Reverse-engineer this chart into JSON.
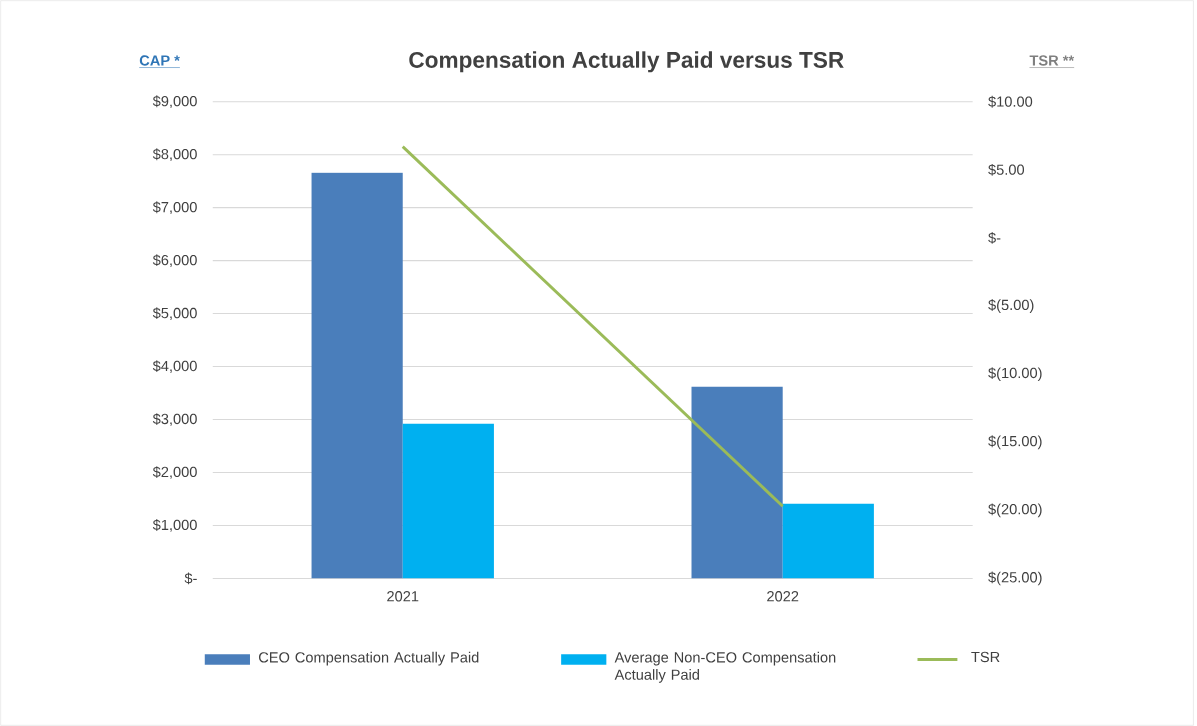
{
  "chart_data": {
    "type": "bar",
    "title": "Compensation Actually Paid versus TSR",
    "ylabel": "CAP *",
    "y2label": "TSR **",
    "categories": [
      "2021",
      "2022"
    ],
    "series": [
      {
        "name": "CEO Compensation Actually Paid",
        "color": "#4a7ebb",
        "values": [
          7660,
          3620
        ]
      },
      {
        "name": "Average Non-CEO Compensation Actually Paid",
        "color": "#00b0f0",
        "values": [
          2920,
          1410
        ]
      },
      {
        "name": "TSR",
        "type": "line",
        "axis": "y2",
        "color": "#9bbb59",
        "values": [
          6.7,
          -19.7
        ]
      }
    ],
    "ylim": [
      0,
      9000
    ],
    "yticks": [
      {
        "value": 0,
        "label": "$-"
      },
      {
        "value": 1000,
        "label": "$1,000"
      },
      {
        "value": 2000,
        "label": "$2,000"
      },
      {
        "value": 3000,
        "label": "$3,000"
      },
      {
        "value": 4000,
        "label": "$4,000"
      },
      {
        "value": 5000,
        "label": "$5,000"
      },
      {
        "value": 6000,
        "label": "$6,000"
      },
      {
        "value": 7000,
        "label": "$7,000"
      },
      {
        "value": 8000,
        "label": "$8,000"
      },
      {
        "value": 9000,
        "label": "$9,000"
      }
    ],
    "y2lim": [
      -25,
      10
    ],
    "y2ticks": [
      {
        "value": -25,
        "label": "$(25.00)"
      },
      {
        "value": -20,
        "label": "$(20.00)"
      },
      {
        "value": -15,
        "label": "$(15.00)"
      },
      {
        "value": -10,
        "label": "$(10.00)"
      },
      {
        "value": -5,
        "label": "$(5.00)"
      },
      {
        "value": 0,
        "label": "$-"
      },
      {
        "value": 5,
        "label": "$5.00"
      },
      {
        "value": 10,
        "label": "$10.00"
      }
    ],
    "grid": "y",
    "legend": "bottom"
  }
}
